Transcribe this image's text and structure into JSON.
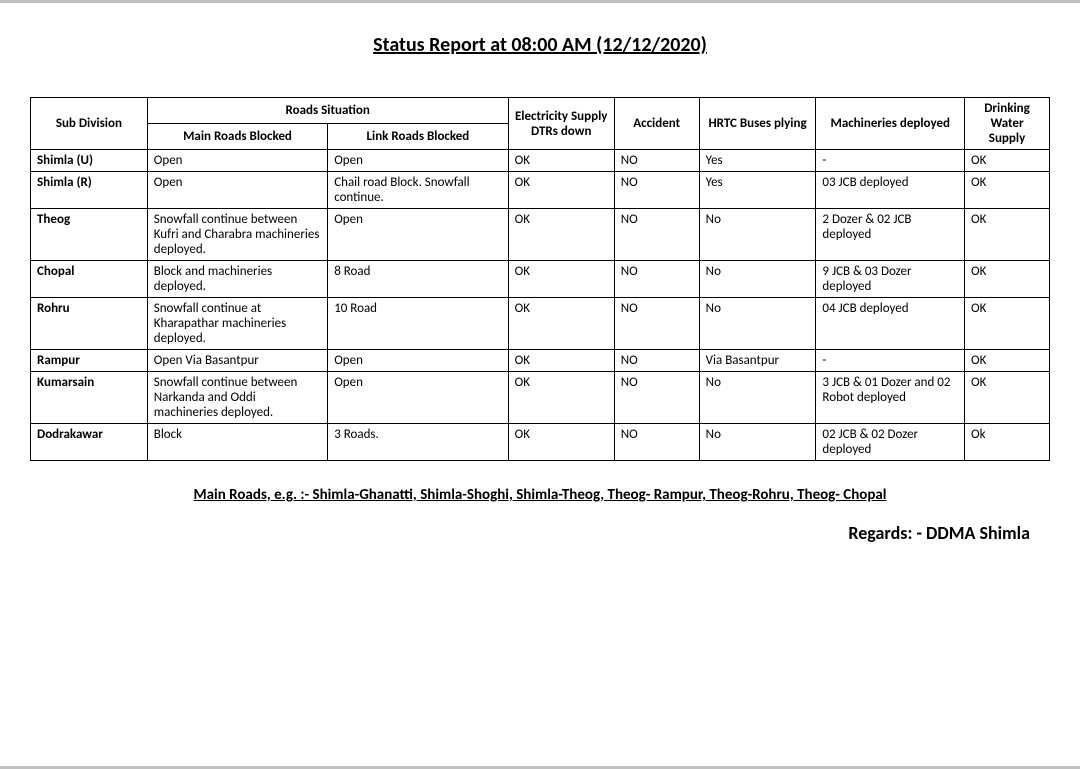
{
  "title": " Status Report at 08:00 AM (12/12/2020)",
  "columns": {
    "sub_division": "Sub Division",
    "roads_situation": "Roads Situation",
    "main_roads": "Main Roads Blocked",
    "link_roads": "Link Roads Blocked",
    "electricity": "Electricity Supply DTRs down",
    "accident": "Accident",
    "hrtc": "HRTC Buses plying",
    "machineries": "Machineries deployed",
    "water": "Drinking Water Supply"
  },
  "rows": [
    {
      "sub": "Shimla (U)",
      "main": "Open",
      "link": "Open",
      "elec": "OK",
      "acc": "NO",
      "hrtc": "Yes",
      "mach": "-",
      "water": "OK"
    },
    {
      "sub": "Shimla (R)",
      "main": "Open",
      "link": "Chail road Block. Snowfall continue.",
      "elec": "OK",
      "acc": "NO",
      "hrtc": "Yes",
      "mach": "03 JCB  deployed",
      "water": "OK"
    },
    {
      "sub": "Theog",
      "main": "Snowfall continue between Kufri  and Charabra machineries deployed.",
      "link": "Open",
      "elec": "OK",
      "acc": "NO",
      "hrtc": "No",
      "mach": "2 Dozer & 02 JCB deployed",
      "water": "OK"
    },
    {
      "sub": "Chopal",
      "main": "Block and machineries deployed.",
      "link": "8 Road",
      "elec": "OK",
      "acc": "NO",
      "hrtc": "No",
      "mach": "9 JCB & 03 Dozer deployed",
      "water": "OK"
    },
    {
      "sub": "Rohru",
      "main": "Snowfall continue at Kharapathar machineries deployed.",
      "link": "10 Road",
      "elec": "OK",
      "acc": "NO",
      "hrtc": "No",
      "mach": "04 JCB  deployed",
      "water": "OK"
    },
    {
      "sub": "Rampur",
      "main": "Open  Via Basantpur",
      "link": "Open",
      "elec": "OK",
      "acc": "NO",
      "hrtc": "Via Basantpur",
      "mach": "-",
      "water": "OK"
    },
    {
      "sub": "Kumarsain",
      "main": "Snowfall continue between Narkanda  and Oddi machineries deployed.",
      "link": "Open",
      "elec": "OK",
      "acc": "NO",
      "hrtc": "No",
      "mach": "3 JCB & 01 Dozer and 02 Robot deployed",
      "water": "OK"
    },
    {
      "sub": "Dodrakawar",
      "main": "Block",
      "link": "3 Roads.",
      "elec": "OK",
      "acc": "NO",
      "hrtc": "No",
      "mach": "02 JCB & 02 Dozer deployed",
      "water": "Ok"
    }
  ],
  "footnote_label": "Main Roads, e.g. :- ",
  "footnote_text": "Shimla-Ghanatti, Shimla-Shoghi, Shimla-Theog, Theog- Rampur, Theog-Rohru, Theog- Chopal",
  "regards": "Regards: - DDMA Shimla"
}
